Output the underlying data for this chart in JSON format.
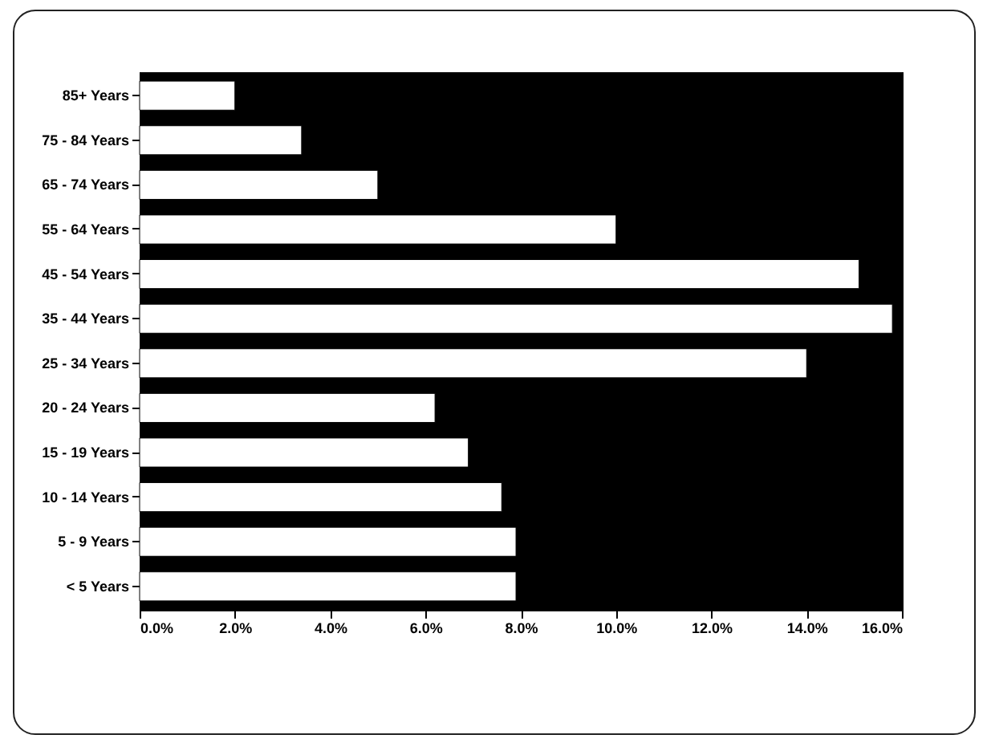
{
  "chart_data": {
    "type": "bar",
    "orientation": "horizontal",
    "categories": [
      "85+ Years",
      "75 - 84 Years",
      "65 - 74 Years",
      "55 - 64 Years",
      "45 - 54 Years",
      "35 - 44 Years",
      "25 - 34 Years",
      "20 - 24 Years",
      "15 - 19 Years",
      "10 - 14 Years",
      "5 - 9 Years",
      "< 5 Years"
    ],
    "values": [
      2.0,
      3.4,
      5.0,
      10.0,
      15.1,
      15.8,
      14.0,
      6.2,
      6.9,
      7.6,
      7.9,
      7.9
    ],
    "color": "#ffffff",
    "xlim": [
      0,
      16
    ],
    "xticks": [
      {
        "value": 0,
        "label": "0.0%"
      },
      {
        "value": 2,
        "label": "2.0%"
      },
      {
        "value": 4,
        "label": "4.0%"
      },
      {
        "value": 6,
        "label": "6.0%"
      },
      {
        "value": 8,
        "label": "8.0%"
      },
      {
        "value": 10,
        "label": "10.0%"
      },
      {
        "value": 12,
        "label": "12.0%"
      },
      {
        "value": 14,
        "label": "14.0%"
      },
      {
        "value": 16,
        "label": "16.0%"
      }
    ],
    "grid": false
  }
}
